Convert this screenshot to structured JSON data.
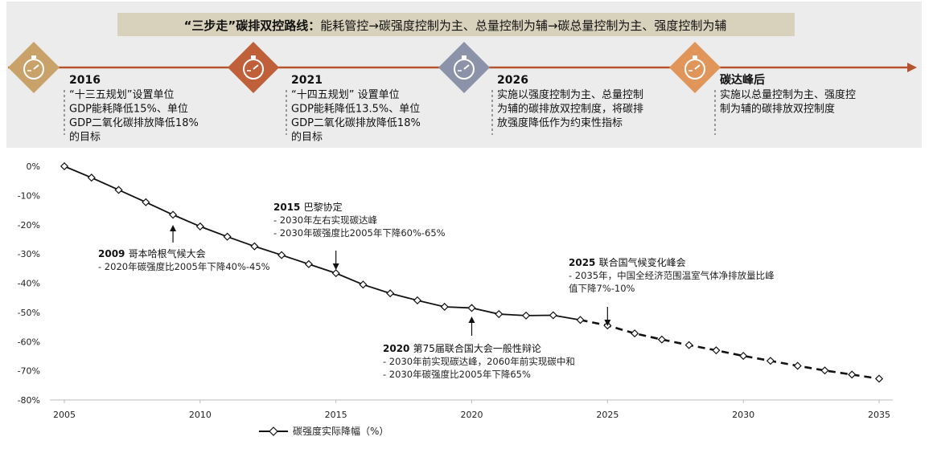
{
  "banner": {
    "title_bold": "“三步走”碳排双控路线：",
    "title_rest": "能耗管控→碳强度控制为主、总量控制为辅→碳总量控制为主、强度控制为辅"
  },
  "milestones": [
    {
      "year": "2016",
      "lines": [
        "“十三五规划”设置单位",
        "GDP能耗降低15%、单位",
        "GDP二氧化碳排放降低18%",
        "的目标"
      ],
      "icon_color": "#c9a26a"
    },
    {
      "year": "2021",
      "lines": [
        "“十四五规划” 设置单位",
        "GDP能耗降低13.5%、单位",
        "GDP二氧化碳排放降低18%",
        "的目标"
      ],
      "icon_color": "#c0603a"
    },
    {
      "year": "2026",
      "lines": [
        "实施以强度控制为主、总量控制",
        "为辅的碳排放双控制度，将碳排",
        "放强度降低作为约束性指标"
      ],
      "icon_color": "#8c93a8"
    },
    {
      "year": "碳达峰后",
      "lines": [
        "实施以总量控制为主、强度控",
        "制为辅的碳排放双控制度"
      ],
      "icon_color": "#e0955a"
    }
  ],
  "colors": {
    "timeline_arrow": "#b5552e",
    "banner_bg": "#d8d2bd",
    "panel_bg": "#ececec",
    "line": "#111111"
  },
  "icons": {
    "milestone": "stopwatch-icon",
    "marker": "diamond-marker-icon",
    "annotation": "arrow-up-icon"
  },
  "chart_data": {
    "type": "line",
    "x": [
      2005,
      2006,
      2007,
      2008,
      2009,
      2010,
      2011,
      2012,
      2013,
      2014,
      2015,
      2016,
      2017,
      2018,
      2019,
      2020,
      2021,
      2022,
      2023,
      2024,
      2025,
      2026,
      2027,
      2028,
      2029,
      2030,
      2031,
      2032,
      2033,
      2034,
      2035
    ],
    "series": [
      {
        "name": "碳强度实际降幅（%）",
        "style": "solid",
        "x": [
          2005,
          2006,
          2007,
          2008,
          2009,
          2010,
          2011,
          2012,
          2013,
          2014,
          2015,
          2016,
          2017,
          2018,
          2019,
          2020,
          2021,
          2022,
          2023,
          2024
        ],
        "values": [
          0,
          -3.9,
          -8.1,
          -12.3,
          -16.6,
          -20.6,
          -24.1,
          -27.4,
          -30.4,
          -33.5,
          -36.6,
          -40.5,
          -43.5,
          -45.9,
          -48.1,
          -48.5,
          -50.6,
          -51.1,
          -51.0,
          -52.6
        ]
      },
      {
        "name": "",
        "style": "dashed",
        "x": [
          2024,
          2025,
          2026,
          2027,
          2028,
          2029,
          2030,
          2031,
          2032,
          2033,
          2034,
          2035
        ],
        "values": [
          -52.6,
          -54.5,
          -57.2,
          -59.3,
          -61.2,
          -63.0,
          -64.9,
          -66.6,
          -68.3,
          -69.9,
          -71.3,
          -72.7
        ]
      }
    ],
    "yticks": [
      "0%",
      "-10%",
      "-20%",
      "-30%",
      "-40%",
      "-50%",
      "-60%",
      "-70%",
      "-80%"
    ],
    "ytick_values": [
      0,
      -10,
      -20,
      -30,
      -40,
      -50,
      -60,
      -70,
      -80
    ],
    "xticks": [
      "2005",
      "2010",
      "2015",
      "2020",
      "2025",
      "2030",
      "2035"
    ],
    "xtick_values": [
      2005,
      2010,
      2015,
      2020,
      2025,
      2030,
      2035
    ],
    "ylim": [
      -80,
      0
    ],
    "xlim": [
      2005,
      2035
    ],
    "grid": false,
    "legend": "bottom",
    "annotations": [
      {
        "year": "2009",
        "title": "哥本哈根气候大会",
        "lines": [
          "- 2020年碳强度比2005年下降40%-45%"
        ],
        "arrow_x": 2009
      },
      {
        "year": "2015",
        "title": "巴黎协定",
        "lines": [
          "- 2030年左右实现碳达峰",
          "- 2030年碳强度比2005年下降60%-65%"
        ],
        "arrow_x": 2015
      },
      {
        "year": "2020",
        "title": "第75届联合国大会一般性辩论",
        "lines": [
          "- 2030年前实现碳达峰，2060年前实现碳中和",
          "- 2030年碳强度比2005年下降65%"
        ],
        "arrow_x": 2020
      },
      {
        "year": "2025",
        "title": "联合国气候变化峰会",
        "lines": [
          "- 2035年，中国全经济范围温室气体净排放量比峰",
          "值下降7%-10%"
        ],
        "arrow_x": 2025
      }
    ]
  }
}
